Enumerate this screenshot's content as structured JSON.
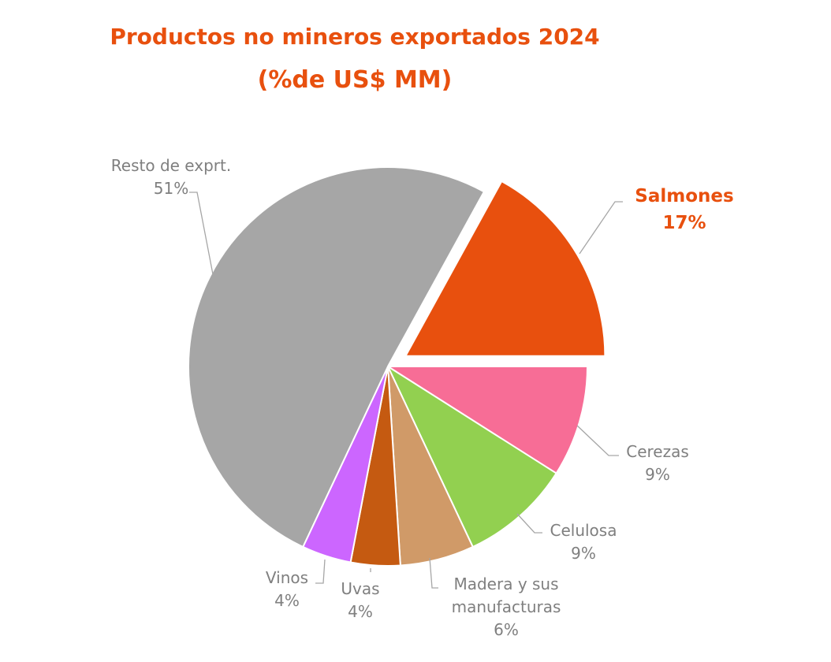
{
  "chart_data": {
    "type": "pie",
    "title": "Productos no mineros exportados 2024",
    "subtitle": "(%de US$ MM)",
    "slices": [
      {
        "label": "Salmones",
        "value": 17,
        "value_label": "17%",
        "color": "#e8500e",
        "exploded": true,
        "highlight": true
      },
      {
        "label": "Cerezas",
        "value": 9,
        "value_label": "9%",
        "color": "#f76d96"
      },
      {
        "label": "Celulosa",
        "value": 9,
        "value_label": "9%",
        "color": "#92d050"
      },
      {
        "label": "Madera y sus manufacturas",
        "value": 6,
        "value_label": "6%",
        "color": "#d09a68"
      },
      {
        "label": "Uvas",
        "value": 4,
        "value_label": "4%",
        "color": "#c55a11"
      },
      {
        "label": "Vinos",
        "value": 4,
        "value_label": "4%",
        "color": "#cc66ff"
      },
      {
        "label": "Resto de exprt.",
        "value": 51,
        "value_label": "51%",
        "color": "#a6a6a6"
      }
    ]
  }
}
